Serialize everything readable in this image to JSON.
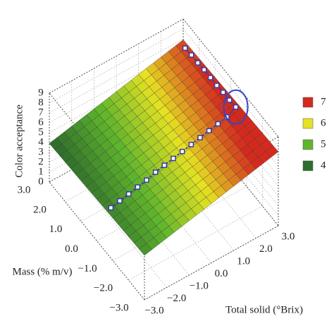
{
  "chart_data": {
    "type": "surface3d",
    "xlabel": "Mass (% m/v)",
    "ylabel": "Total solid (°Brix)",
    "zlabel": "Color acceptance",
    "xlim": [
      -3,
      3
    ],
    "ylim": [
      -3,
      3
    ],
    "zlim": [
      0,
      9
    ],
    "xticks": [
      {
        "value": 3,
        "label": "3.0"
      },
      {
        "value": 2,
        "label": "2.0"
      },
      {
        "value": 1,
        "label": "1.0"
      },
      {
        "value": 0,
        "label": "0.0"
      },
      {
        "value": -1,
        "label": "−1.0"
      },
      {
        "value": -2,
        "label": "−2.0"
      },
      {
        "value": -3,
        "label": "−3.0"
      }
    ],
    "yticks": [
      {
        "value": -3,
        "label": "−3.0"
      },
      {
        "value": -2,
        "label": "−2.0"
      },
      {
        "value": -1,
        "label": "−1.0"
      },
      {
        "value": 0,
        "label": "0.0"
      },
      {
        "value": 1,
        "label": "1.0"
      },
      {
        "value": 2,
        "label": "2.0"
      },
      {
        "value": 3,
        "label": "3.0"
      }
    ],
    "zticks": [
      0,
      1,
      2,
      3,
      4,
      5,
      6,
      7,
      8,
      9
    ],
    "x": [
      -3,
      -2,
      -1,
      0,
      1,
      2,
      3
    ],
    "y": [
      -3,
      -2,
      -1,
      0,
      1,
      2,
      3
    ],
    "z": [
      [
        4.5,
        4.4,
        4.3,
        4.2,
        4.1,
        4.0,
        3.9
      ],
      [
        5.0,
        4.9,
        4.8,
        4.7,
        4.6,
        4.5,
        4.4
      ],
      [
        5.5,
        5.4,
        5.3,
        5.2,
        5.1,
        5.0,
        4.9
      ],
      [
        6.0,
        5.9,
        5.8,
        5.7,
        5.6,
        5.5,
        5.4
      ],
      [
        6.5,
        6.4,
        6.3,
        6.2,
        6.1,
        6.0,
        5.9
      ],
      [
        7.0,
        6.9,
        6.8,
        6.7,
        6.6,
        6.5,
        6.4
      ],
      [
        7.5,
        7.4,
        7.3,
        7.2,
        7.1,
        7.0,
        6.9
      ]
    ],
    "legend": {
      "values": [
        7,
        6,
        5,
        4
      ],
      "colors": [
        "#d42a1e",
        "#e6e222",
        "#5fb52c",
        "#2f6e2c"
      ]
    },
    "path": {
      "color": "#3b3ba3",
      "x": [
        2.6,
        2.2,
        1.8,
        1.4,
        1.0,
        0.6,
        0.2,
        -0.2,
        -0.6,
        -0.6,
        -0.6,
        -0.6,
        -0.6,
        -0.6,
        -0.6,
        -0.6,
        -0.6,
        -0.6,
        -0.6,
        -0.6,
        -0.6,
        -0.6,
        -0.6
      ],
      "y": [
        2.8,
        2.8,
        2.8,
        2.8,
        2.8,
        2.8,
        2.8,
        2.8,
        2.8,
        2.4,
        2.0,
        1.6,
        1.2,
        0.8,
        0.4,
        0.0,
        -0.4,
        -0.8,
        -1.2,
        -1.6,
        -2.0,
        -2.4,
        -2.8
      ],
      "z": [
        7.1,
        7.2,
        7.2,
        7.3,
        7.3,
        7.3,
        7.4,
        7.4,
        7.5,
        7.0,
        6.8,
        6.6,
        6.4,
        6.2,
        6.0,
        5.8,
        5.6,
        5.4,
        5.1,
        4.9,
        4.7,
        4.5,
        4.3
      ]
    }
  }
}
